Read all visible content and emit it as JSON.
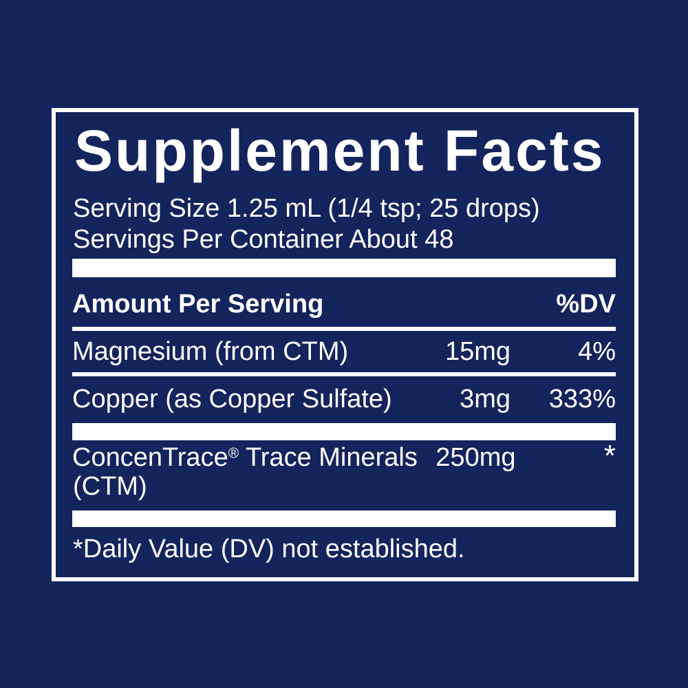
{
  "colors": {
    "background": "#14245c",
    "text": "#ffffff",
    "divider": "#ffffff"
  },
  "label": {
    "title": "Supplement Facts",
    "serving_size": "Serving Size 1.25 mL (1/4 tsp; 25 drops)",
    "servings_per_container": "Servings Per Container About 48",
    "header": {
      "amount_column": "Amount Per Serving",
      "dv_column": "%DV"
    },
    "rows": [
      {
        "name": "Magnesium (from CTM)",
        "amount": "15mg",
        "dv": "4%"
      },
      {
        "name": "Copper (as Copper Sulfate)",
        "amount": "3mg",
        "dv": "333%"
      },
      {
        "brand": "ConcenTrace",
        "reg": "®",
        "rest": " Trace Minerals",
        "name_line2": "(CTM)",
        "amount": "250mg",
        "dv": "*"
      }
    ],
    "footnote": "*Daily Value (DV) not established."
  }
}
